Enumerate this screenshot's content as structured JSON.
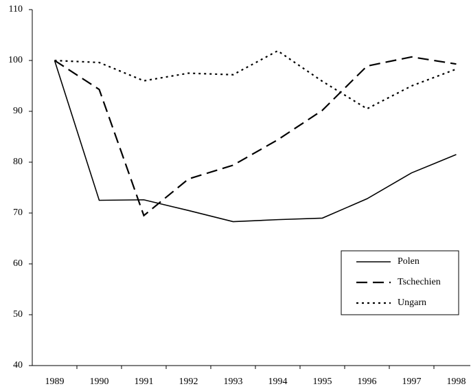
{
  "chart_data": {
    "type": "line",
    "categories": [
      "1989",
      "1990",
      "1991",
      "1992",
      "1993",
      "1994",
      "1995",
      "1996",
      "1997",
      "1998"
    ],
    "series": [
      {
        "name": "Polen",
        "color": "#000000",
        "dash": "solid",
        "values": [
          100,
          72.5,
          72.6,
          70.5,
          68.3,
          68.7,
          69,
          72.8,
          77.9,
          81.5
        ]
      },
      {
        "name": "Tschechien",
        "color": "#000000",
        "dash": "dashed",
        "values": [
          100,
          94.3,
          69.5,
          76.7,
          79.4,
          84.4,
          90.2,
          98.9,
          100.7,
          99.3
        ]
      },
      {
        "name": "Ungarn",
        "color": "#000000",
        "dash": "dotted",
        "values": [
          100,
          99.6,
          96,
          97.5,
          97.2,
          101.9,
          95.9,
          90.5,
          95,
          98.3
        ]
      }
    ],
    "ylim": [
      40,
      110
    ],
    "yticks": [
      40,
      50,
      60,
      70,
      80,
      90,
      100,
      110
    ],
    "grid": false,
    "legend": "lower right"
  }
}
